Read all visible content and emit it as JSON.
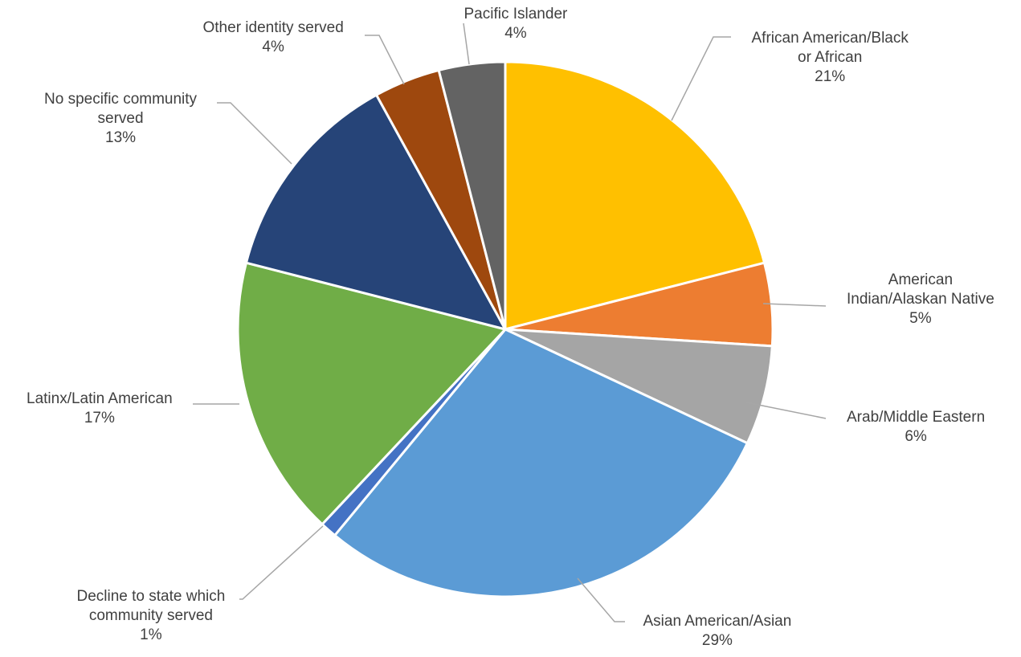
{
  "chart_data": {
    "type": "pie",
    "title": "",
    "start_angle_deg": 0,
    "direction": "clockwise",
    "colors": {
      "leader_line": "#a6a6a6",
      "label_text": "#404040",
      "slice_border": "#ffffff"
    },
    "slices": [
      {
        "label_lines": [
          "African American/Black",
          "or African"
        ],
        "label": "African American/Black or African",
        "value": 21,
        "value_label": "21%",
        "color": "#ffc000"
      },
      {
        "label_lines": [
          "American",
          "Indian/Alaskan Native"
        ],
        "label": "American Indian/Alaskan Native",
        "value": 5,
        "value_label": "5%",
        "color": "#ed7d31"
      },
      {
        "label_lines": [
          "Arab/Middle Eastern"
        ],
        "label": "Arab/Middle Eastern",
        "value": 6,
        "value_label": "6%",
        "color": "#a5a5a5"
      },
      {
        "label_lines": [
          "Asian American/Asian"
        ],
        "label": "Asian American/Asian",
        "value": 29,
        "value_label": "29%",
        "color": "#5b9bd5"
      },
      {
        "label_lines": [
          "Decline to state which",
          "community served"
        ],
        "label": "Decline to state which community served",
        "value": 1,
        "value_label": "1%",
        "color": "#4472c4"
      },
      {
        "label_lines": [
          "Latinx/Latin American"
        ],
        "label": "Latinx/Latin American",
        "value": 17,
        "value_label": "17%",
        "color": "#70ad47"
      },
      {
        "label_lines": [
          "No specific community",
          "served"
        ],
        "label": "No specific community served",
        "value": 13,
        "value_label": "13%",
        "color": "#264478"
      },
      {
        "label_lines": [
          "Other identity served"
        ],
        "label": "Other identity served",
        "value": 4,
        "value_label": "4%",
        "color": "#9e480e"
      },
      {
        "label_lines": [
          "Pacific Islander"
        ],
        "label": "Pacific Islander",
        "value": 4,
        "value_label": "4%",
        "color": "#636363"
      }
    ]
  }
}
